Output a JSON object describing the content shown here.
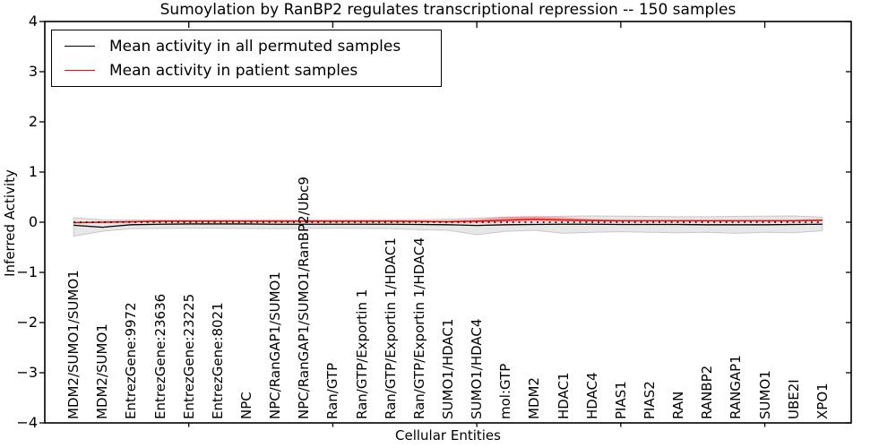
{
  "figure": {
    "background": "#ffffff"
  },
  "chart_data": {
    "type": "line",
    "title": "Sumoylation by RanBP2 regulates transcriptional repression -- 150 samples",
    "xlabel": "Cellular Entities",
    "ylabel": "Inferred Activity",
    "ylim": [
      -4,
      4
    ],
    "grid": false,
    "yticks": {
      "values": [
        4,
        3,
        2,
        1,
        0,
        -1,
        -2,
        -3,
        -4
      ],
      "labels": [
        "4",
        "3",
        "2",
        "1",
        "0",
        "−1",
        "−2",
        "−3",
        "−4"
      ]
    },
    "x_major_ticks": [
      5,
      10,
      15,
      20,
      25
    ],
    "categories": [
      "MDM2/SUMO1/SUMO1",
      "MDM2/SUMO1",
      "EntrezGene:9972",
      "EntrezGene:23636",
      "EntrezGene:23225",
      "EntrezGene:8021",
      "NPC",
      "NPC/RanGAP1/SUMO1",
      "NPC/RanGAP1/SUMO1/RanBP2/Ubc9",
      "Ran/GTP",
      "Ran/GTP/Exportin 1",
      "Ran/GTP/Exportin 1/HDAC1",
      "Ran/GTP/Exportin 1/HDAC4",
      "SUMO1/HDAC1",
      "SUMO1/HDAC4",
      "mol:GTP",
      "MDM2",
      "HDAC1",
      "HDAC4",
      "PIAS1",
      "PIAS2",
      "RAN",
      "RANBP2",
      "RANGAP1",
      "SUMO1",
      "UBE2I",
      "XPO1"
    ],
    "series": [
      {
        "name": "permuted-mean",
        "color": "#000000",
        "width": 1.3,
        "values": [
          -0.06,
          -0.1,
          -0.05,
          -0.04,
          -0.035,
          -0.035,
          -0.035,
          -0.04,
          -0.04,
          -0.04,
          -0.04,
          -0.04,
          -0.045,
          -0.05,
          -0.065,
          -0.05,
          -0.045,
          -0.04,
          -0.04,
          -0.045,
          -0.045,
          -0.045,
          -0.05,
          -0.05,
          -0.05,
          -0.045,
          -0.04
        ]
      },
      {
        "name": "patient-mean",
        "color": "#ff0000",
        "width": 1.5,
        "values": [
          -0.01,
          0.0,
          0.01,
          0.02,
          0.02,
          0.02,
          0.02,
          0.02,
          0.02,
          0.02,
          0.02,
          0.02,
          0.015,
          0.01,
          0.02,
          0.04,
          0.06,
          0.045,
          0.035,
          0.03,
          0.03,
          0.03,
          0.03,
          0.03,
          0.03,
          0.03,
          0.04
        ]
      }
    ],
    "bands": [
      {
        "name": "permuted-range",
        "fill": "#e7e7e7",
        "edge": "#c9c9c9",
        "opacity": 1,
        "hi": [
          0.09,
          0.05,
          0.045,
          0.045,
          0.045,
          0.05,
          0.05,
          0.05,
          0.05,
          0.05,
          0.05,
          0.05,
          0.05,
          0.06,
          0.08,
          0.1,
          0.1,
          0.12,
          0.125,
          0.12,
          0.115,
          0.11,
          0.11,
          0.115,
          0.12,
          0.125,
          0.1
        ],
        "lo": [
          -0.28,
          -0.18,
          -0.13,
          -0.125,
          -0.12,
          -0.12,
          -0.125,
          -0.13,
          -0.125,
          -0.12,
          -0.125,
          -0.13,
          -0.15,
          -0.16,
          -0.25,
          -0.18,
          -0.16,
          -0.22,
          -0.2,
          -0.19,
          -0.2,
          -0.21,
          -0.2,
          -0.22,
          -0.2,
          -0.21,
          -0.17
        ]
      },
      {
        "name": "patient-range",
        "fill": "#ff0000",
        "edge": "none",
        "opacity": 0.25,
        "hi": [
          0.0,
          0.015,
          0.025,
          0.035,
          0.035,
          0.035,
          0.035,
          0.035,
          0.035,
          0.035,
          0.035,
          0.035,
          0.03,
          0.03,
          0.06,
          0.11,
          0.125,
          0.1,
          0.06,
          0.045,
          0.045,
          0.045,
          0.045,
          0.045,
          0.045,
          0.045,
          0.055
        ],
        "lo": [
          -0.02,
          -0.015,
          -0.005,
          0.005,
          0.005,
          0.005,
          0.005,
          0.005,
          0.005,
          0.005,
          0.005,
          0.005,
          0.0,
          -0.005,
          -0.01,
          0.0,
          0.02,
          0.01,
          0.01,
          0.015,
          0.015,
          0.015,
          0.015,
          0.015,
          0.015,
          0.015,
          0.02
        ]
      }
    ],
    "zero_line": {
      "value": 0,
      "style": "dotted",
      "color": "#000000"
    },
    "legend": {
      "position": "upper left",
      "entries": [
        "Mean activity in all permuted samples",
        "Mean activity in patient samples"
      ]
    }
  }
}
